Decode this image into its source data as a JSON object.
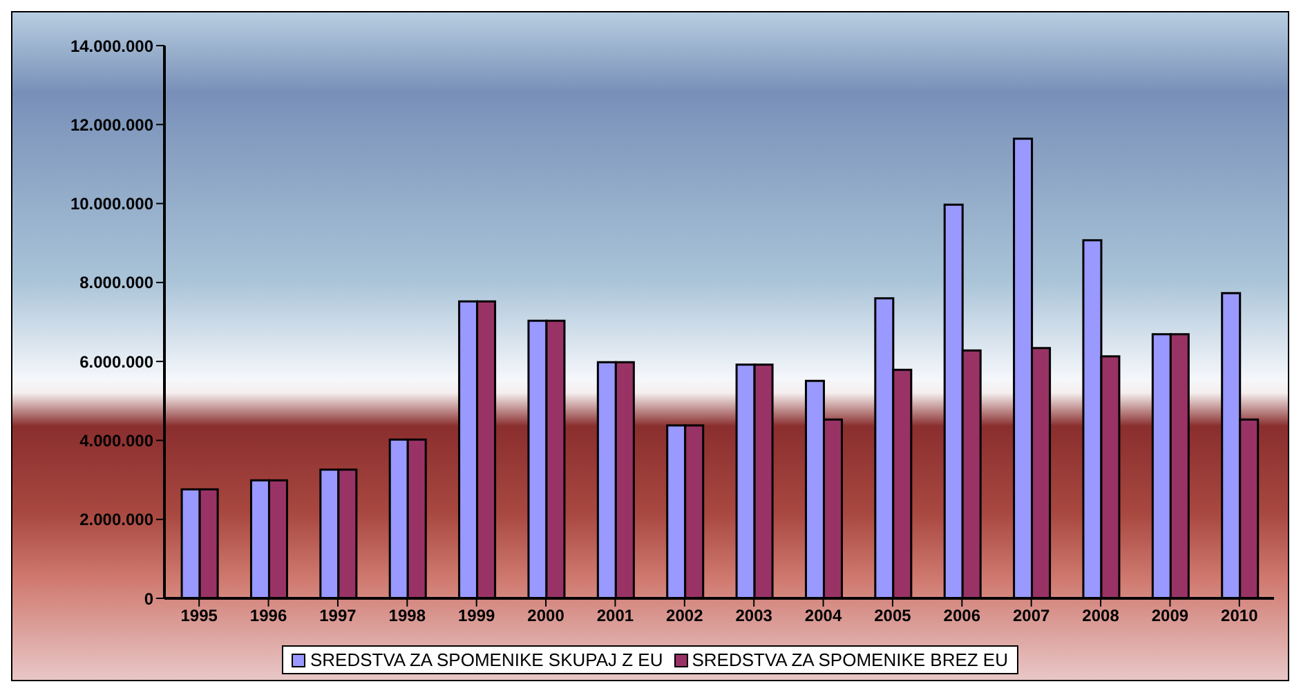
{
  "chart_data": {
    "type": "bar",
    "categories": [
      "1995",
      "1996",
      "1997",
      "1998",
      "1999",
      "2000",
      "2001",
      "2002",
      "2003",
      "2004",
      "2005",
      "2006",
      "2007",
      "2008",
      "2009",
      "2010"
    ],
    "series": [
      {
        "name": "SREDSTVA ZA SPOMENIKE SKUPAJ Z EU",
        "color": "#9999ff",
        "values": [
          2760000,
          2990000,
          3260000,
          4020000,
          7520000,
          7030000,
          5980000,
          4380000,
          5920000,
          5510000,
          7600000,
          9970000,
          11640000,
          9070000,
          6690000,
          7730000
        ]
      },
      {
        "name": "SREDSTVA ZA SPOMENIKE BREZ EU",
        "color": "#993366",
        "values": [
          2760000,
          2990000,
          3260000,
          4020000,
          7520000,
          7030000,
          5980000,
          4380000,
          5920000,
          4530000,
          5790000,
          6280000,
          6340000,
          6130000,
          6690000,
          4530000
        ]
      }
    ],
    "ylim": [
      0,
      14000000
    ],
    "yticks": [
      {
        "value": 0,
        "label": "0"
      },
      {
        "value": 2000000,
        "label": "2.000.000"
      },
      {
        "value": 4000000,
        "label": "4.000.000"
      },
      {
        "value": 6000000,
        "label": "6.000.000"
      },
      {
        "value": 8000000,
        "label": "8.000.000"
      },
      {
        "value": 10000000,
        "label": "10.000.000"
      },
      {
        "value": 12000000,
        "label": "12.000.000"
      },
      {
        "value": 14000000,
        "label": "14.000.000"
      }
    ],
    "grid": false,
    "legend": "bottom"
  }
}
